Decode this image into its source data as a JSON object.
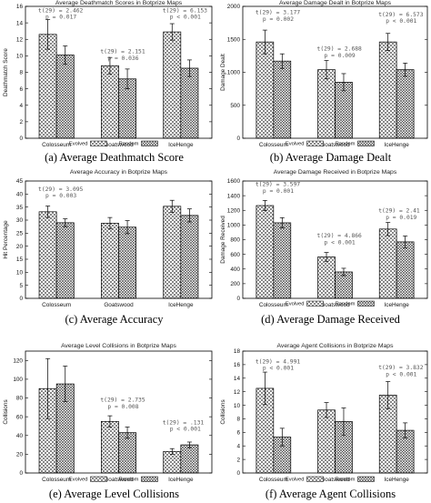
{
  "legend": {
    "evolved": "Evolved",
    "random": "Random"
  },
  "chart_data": [
    {
      "type": "bar",
      "title": "Average Deathmatch Scores in Botprize Maps",
      "caption": "(a)  Average Deathmatch Score",
      "ylabel": "Deathmatch Score",
      "ylim": [
        0,
        16
      ],
      "yticks": [
        0,
        2,
        4,
        6,
        8,
        10,
        12,
        14,
        16
      ],
      "categories": [
        "Colosseum",
        "Goatswood",
        "IceHenge"
      ],
      "series": [
        {
          "name": "Evolved",
          "values": [
            12.6,
            8.8,
            12.9
          ],
          "errors": [
            1.8,
            1.0,
            1.0
          ]
        },
        {
          "name": "Random",
          "values": [
            10.1,
            7.2,
            8.5
          ],
          "errors": [
            1.1,
            1.2,
            1.0
          ]
        }
      ],
      "annotations": [
        {
          "category": 0,
          "lines": [
            "t(29) = 2.462",
            "p = 0.017"
          ],
          "y": 15.3
        },
        {
          "category": 1,
          "lines": [
            "t(29) = 2.151",
            "p = 0.036"
          ],
          "y": 10.3
        },
        {
          "category": 2,
          "lines": [
            "t(29) = 6.153",
            "p < 0.001"
          ],
          "y": 15.3
        }
      ]
    },
    {
      "type": "bar",
      "title": "Average Damage Dealt in Botprize Maps",
      "caption": "(b)  Average Damage Dealt",
      "ylabel": "Damage Dealt",
      "ylim": [
        0,
        2000
      ],
      "yticks": [
        0,
        500,
        1000,
        1500,
        2000
      ],
      "categories": [
        "Colosseum",
        "Goatswood",
        "IceHenge"
      ],
      "series": [
        {
          "name": "Evolved",
          "values": [
            1460,
            1040,
            1460
          ],
          "errors": [
            180,
            140,
            130
          ]
        },
        {
          "name": "Random",
          "values": [
            1170,
            850,
            1040
          ],
          "errors": [
            110,
            130,
            100
          ]
        }
      ],
      "annotations": [
        {
          "category": 0,
          "lines": [
            "t(29) = 3.177",
            "p = 0.002"
          ],
          "y": 1880
        },
        {
          "category": 1,
          "lines": [
            "t(29) = 2.688",
            "p = 0.009"
          ],
          "y": 1330
        },
        {
          "category": 2,
          "lines": [
            "t(29) = 6.573",
            "p < 0.001"
          ],
          "y": 1850
        }
      ]
    },
    {
      "type": "bar",
      "title": "Average Accuracy in Botprize Maps",
      "caption": "(c)  Average Accuracy",
      "ylabel": "Hit Percentage",
      "ylim": [
        0,
        45
      ],
      "yticks": [
        0,
        5,
        10,
        15,
        20,
        25,
        30,
        35,
        40,
        45
      ],
      "categories": [
        "Colosseum",
        "Goatswood",
        "IceHenge"
      ],
      "series": [
        {
          "name": "Evolved",
          "values": [
            33.2,
            28.8,
            35.3
          ],
          "errors": [
            2.2,
            2.2,
            2.3
          ]
        },
        {
          "name": "Random",
          "values": [
            29.0,
            27.3,
            31.8
          ],
          "errors": [
            1.5,
            2.5,
            2.5
          ]
        }
      ],
      "annotations": [
        {
          "category": 0,
          "lines": [
            "t(29) = 3.095",
            "p = 0.003"
          ],
          "y": 41.2
        }
      ]
    },
    {
      "type": "bar",
      "title": "Average Damage Received in Botprize Maps",
      "caption": "(d)  Average Damage Received",
      "ylabel": "Damage Received",
      "ylim": [
        0,
        1600
      ],
      "yticks": [
        0,
        200,
        400,
        600,
        800,
        1000,
        1200,
        1400,
        1600
      ],
      "categories": [
        "Colosseum",
        "Goatswood",
        "IceHenge"
      ],
      "series": [
        {
          "name": "Evolved",
          "values": [
            1265,
            565,
            945
          ],
          "errors": [
            70,
            60,
            90
          ]
        },
        {
          "name": "Random",
          "values": [
            1030,
            360,
            770
          ],
          "errors": [
            70,
            50,
            80
          ]
        }
      ],
      "annotations": [
        {
          "category": 0,
          "lines": [
            "t(29) = 3.597",
            "p = 0.001"
          ],
          "y": 1530
        },
        {
          "category": 1,
          "lines": [
            "t(29) = 4.866",
            "p < 0.001"
          ],
          "y": 830
        },
        {
          "category": 2,
          "lines": [
            "t(29) = 2.41",
            "p = 0.019"
          ],
          "y": 1170
        }
      ]
    },
    {
      "type": "bar",
      "title": "Average Level Collisions in Botprize Maps",
      "caption": "(e)  Average Level Collisions",
      "ylabel": "Collisions",
      "ylim": [
        0,
        130
      ],
      "yticks": [
        0,
        20,
        40,
        60,
        80,
        100,
        120
      ],
      "categories": [
        "Colosseum",
        "Goatswood",
        "IceHenge"
      ],
      "series": [
        {
          "name": "Evolved",
          "values": [
            90,
            55,
            23
          ],
          "errors": [
            32,
            6,
            3
          ]
        },
        {
          "name": "Random",
          "values": [
            95,
            43,
            30
          ],
          "errors": [
            19,
            6,
            3
          ]
        }
      ],
      "annotations": [
        {
          "category": 1,
          "lines": [
            "t(29) = 2.735",
            "p = 0.008"
          ],
          "y": 76
        },
        {
          "category": 2,
          "lines": [
            "t(29) = .131",
            "p < 0.001"
          ],
          "y": 52
        }
      ]
    },
    {
      "type": "bar",
      "title": "Average Agent Collisions in Botprize Maps",
      "caption": "(f)  Average Agent Collisions",
      "ylabel": "Collisions",
      "ylim": [
        0,
        18
      ],
      "yticks": [
        0,
        2,
        4,
        6,
        8,
        10,
        12,
        14,
        16,
        18
      ],
      "categories": [
        "Colosseum",
        "Goatswood",
        "IceHenge"
      ],
      "series": [
        {
          "name": "Evolved",
          "values": [
            12.5,
            9.3,
            11.5
          ],
          "errors": [
            2.4,
            1.1,
            2.0
          ]
        },
        {
          "name": "Random",
          "values": [
            5.3,
            7.6,
            6.3
          ],
          "errors": [
            1.3,
            2.0,
            1.1
          ]
        }
      ],
      "annotations": [
        {
          "category": 0,
          "lines": [
            "t(29) = 4.991",
            "p < 0.001"
          ],
          "y": 16.2
        },
        {
          "category": 2,
          "lines": [
            "t(29) = 3.832",
            "p < 0.001"
          ],
          "y": 15.3
        }
      ]
    }
  ]
}
